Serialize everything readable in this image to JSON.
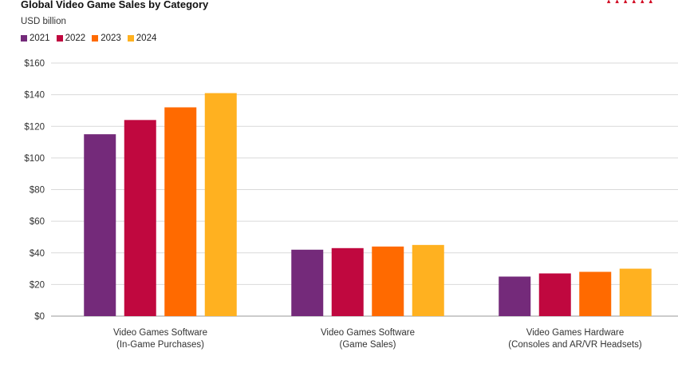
{
  "chart_data": {
    "type": "bar",
    "title": "Global Video Game Sales by Category",
    "subtitle": "USD billion",
    "categories": [
      [
        "Video Games Software",
        "(In-Game Purchases)"
      ],
      [
        "Video Games Software",
        "(Game Sales)"
      ],
      [
        "Video Games Hardware",
        "(Consoles and AR/VR Headsets)"
      ]
    ],
    "series": [
      {
        "name": "2021",
        "color": "#742a7a",
        "values": [
          115,
          42,
          25
        ]
      },
      {
        "name": "2022",
        "color": "#c0083f",
        "values": [
          124,
          43,
          27
        ]
      },
      {
        "name": "2023",
        "color": "#ff6a00",
        "values": [
          132,
          44,
          28
        ]
      },
      {
        "name": "2024",
        "color": "#ffb120",
        "values": [
          141,
          45,
          30
        ]
      }
    ],
    "yticks": [
      "$0",
      "$20",
      "$40",
      "$60",
      "$80",
      "$100",
      "$120",
      "$140",
      "$160"
    ],
    "ylim": [
      0,
      160
    ],
    "xlabel": "",
    "ylabel": "",
    "grid": true,
    "legend_position": "top-left"
  }
}
